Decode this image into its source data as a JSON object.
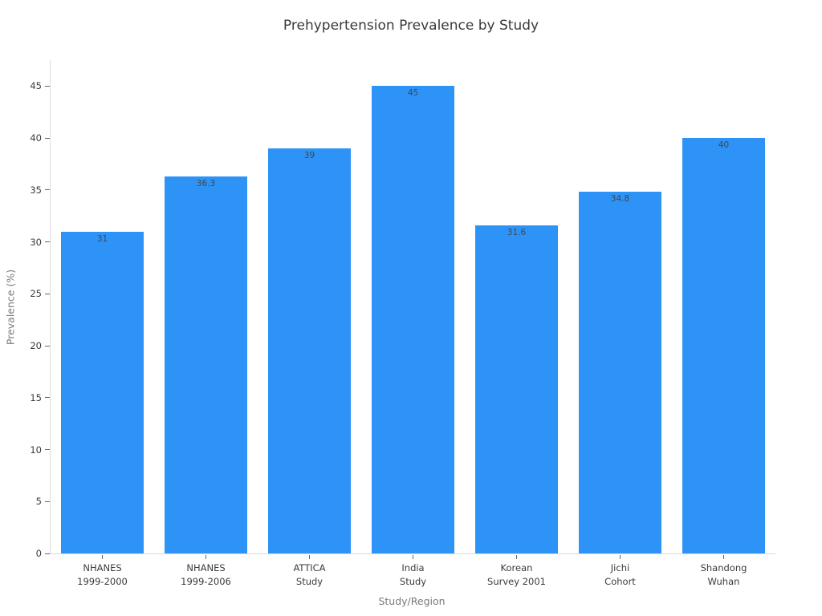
{
  "chart_data": {
    "type": "bar",
    "title": "Prehypertension Prevalence by Study",
    "xlabel": "Study/Region",
    "ylabel": "Prevalence (%)",
    "categories": [
      [
        "NHANES",
        "1999-2000"
      ],
      [
        "NHANES",
        "1999-2006"
      ],
      [
        "ATTICA",
        "Study"
      ],
      [
        "India",
        "Study"
      ],
      [
        "Korean",
        "Survey 2001"
      ],
      [
        "Jichi",
        "Cohort"
      ],
      [
        "Shandong",
        "Wuhan"
      ]
    ],
    "values": [
      31,
      36.3,
      39,
      45,
      31.6,
      34.8,
      40
    ],
    "value_labels": [
      "31",
      "36.3",
      "39",
      "45",
      "31.6",
      "34.8",
      "40"
    ],
    "yticks": [
      0,
      5,
      10,
      15,
      20,
      25,
      30,
      35,
      40,
      45
    ],
    "ylim": [
      0,
      47.5
    ],
    "bar_color": "#2e93f6",
    "bar_width_fraction": 0.8,
    "grid": false,
    "legend": "none",
    "value_label_position": "inside-top",
    "colors": {
      "title_text": "#3a3a3a",
      "tick_text": "#3b3b3b",
      "axis_title_text": "#7a7a7a",
      "spine": "#d9d9d9",
      "value_label_text": "#40484f",
      "background": "#ffffff"
    }
  }
}
